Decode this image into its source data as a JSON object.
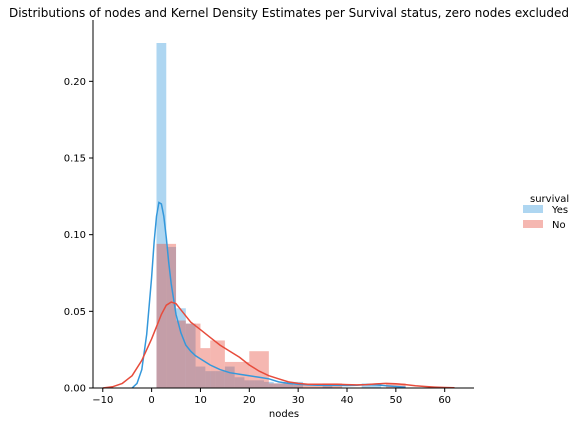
{
  "chart_data": {
    "type": "histogram",
    "title": "Distributions of nodes and Kernel Density Estimates per Survival status, zero nodes excluded",
    "xlabel": "nodes",
    "ylabel": "",
    "xlim": [
      -12,
      66
    ],
    "ylim": [
      0,
      0.24
    ],
    "x_ticks": [
      -10,
      0,
      10,
      20,
      30,
      40,
      50,
      60
    ],
    "x_tick_labels": [
      "−10",
      "0",
      "10",
      "20",
      "30",
      "40",
      "50",
      "60"
    ],
    "y_ticks": [
      0.0,
      0.05,
      0.1,
      0.15,
      0.2
    ],
    "y_tick_labels": [
      "0.00",
      "0.05",
      "0.10",
      "0.15",
      "0.20"
    ],
    "legend": {
      "title": "survival",
      "placement": "right",
      "entries": [
        "Yes",
        "No"
      ]
    },
    "series": [
      {
        "name": "Yes",
        "color": "#3498db",
        "bars": [
          {
            "x0": 1,
            "x1": 3,
            "y": 0.225
          },
          {
            "x0": 3,
            "x1": 5,
            "y": 0.092
          },
          {
            "x0": 5,
            "x1": 7,
            "y": 0.052
          },
          {
            "x0": 7,
            "x1": 9,
            "y": 0.042
          },
          {
            "x0": 9,
            "x1": 11,
            "y": 0.014
          },
          {
            "x0": 11,
            "x1": 13,
            "y": 0.011
          },
          {
            "x0": 13,
            "x1": 15,
            "y": 0.011
          },
          {
            "x0": 15,
            "x1": 17,
            "y": 0.014
          },
          {
            "x0": 17,
            "x1": 19,
            "y": 0.007
          },
          {
            "x0": 19,
            "x1": 21,
            "y": 0.005
          },
          {
            "x0": 21,
            "x1": 23,
            "y": 0.005
          },
          {
            "x0": 23,
            "x1": 25,
            "y": 0.004
          },
          {
            "x0": 25,
            "x1": 27,
            "y": 0.003
          },
          {
            "x0": 27,
            "x1": 29,
            "y": 0.004
          },
          {
            "x0": 29,
            "x1": 31,
            "y": 0.004
          },
          {
            "x0": 35,
            "x1": 37,
            "y": 0.002
          },
          {
            "x0": 43,
            "x1": 45,
            "y": 0.003
          },
          {
            "x0": 45,
            "x1": 47,
            "y": 0.002
          }
        ],
        "kde": {
          "x": [
            -4,
            -3,
            -2,
            -1,
            0,
            0.5,
            1,
            1.5,
            2,
            2.5,
            3,
            3.5,
            4,
            5,
            6,
            7,
            8,
            9,
            10,
            12,
            14,
            16,
            18,
            20,
            22,
            24,
            26,
            28,
            30,
            32,
            34,
            36,
            38,
            40,
            42,
            44,
            46,
            48,
            50,
            52
          ],
          "y": [
            0.0,
            0.003,
            0.012,
            0.035,
            0.072,
            0.095,
            0.112,
            0.121,
            0.12,
            0.112,
            0.098,
            0.082,
            0.068,
            0.048,
            0.036,
            0.028,
            0.024,
            0.021,
            0.019,
            0.015,
            0.012,
            0.01,
            0.009,
            0.008,
            0.007,
            0.006,
            0.004,
            0.003,
            0.0025,
            0.002,
            0.0018,
            0.0018,
            0.0017,
            0.0016,
            0.0018,
            0.0022,
            0.002,
            0.0015,
            0.001,
            0.0005
          ]
        }
      },
      {
        "name": "No",
        "color": "#e74c3c",
        "bars": [
          {
            "x0": 1,
            "x1": 5,
            "y": 0.094
          },
          {
            "x0": 5,
            "x1": 7,
            "y": 0.044
          },
          {
            "x0": 7,
            "x1": 10,
            "y": 0.042
          },
          {
            "x0": 10,
            "x1": 12,
            "y": 0.026
          },
          {
            "x0": 12,
            "x1": 15,
            "y": 0.031
          },
          {
            "x0": 15,
            "x1": 20,
            "y": 0.017
          },
          {
            "x0": 20,
            "x1": 24,
            "y": 0.024
          },
          {
            "x0": 24,
            "x1": 29,
            "y": 0.003
          },
          {
            "x0": 29,
            "x1": 35,
            "y": 0.002
          },
          {
            "x0": 35,
            "x1": 39,
            "y": 0.003
          },
          {
            "x0": 48,
            "x1": 52,
            "y": 0.003
          }
        ],
        "kde": {
          "x": [
            -10,
            -8,
            -6,
            -4,
            -2,
            0,
            1,
            2,
            3,
            4,
            5,
            6,
            8,
            10,
            12,
            14,
            16,
            18,
            20,
            22,
            24,
            26,
            28,
            30,
            32,
            34,
            36,
            38,
            40,
            42,
            44,
            46,
            48,
            50,
            52,
            54,
            56,
            58,
            60,
            62
          ],
          "y": [
            0.0,
            0.0008,
            0.003,
            0.008,
            0.018,
            0.032,
            0.04,
            0.048,
            0.054,
            0.056,
            0.055,
            0.051,
            0.043,
            0.038,
            0.033,
            0.028,
            0.024,
            0.02,
            0.015,
            0.011,
            0.008,
            0.006,
            0.004,
            0.003,
            0.0025,
            0.0025,
            0.0025,
            0.0024,
            0.0022,
            0.002,
            0.0022,
            0.0027,
            0.003,
            0.0028,
            0.0022,
            0.0015,
            0.001,
            0.0006,
            0.0003,
            0.0001
          ]
        }
      }
    ]
  }
}
